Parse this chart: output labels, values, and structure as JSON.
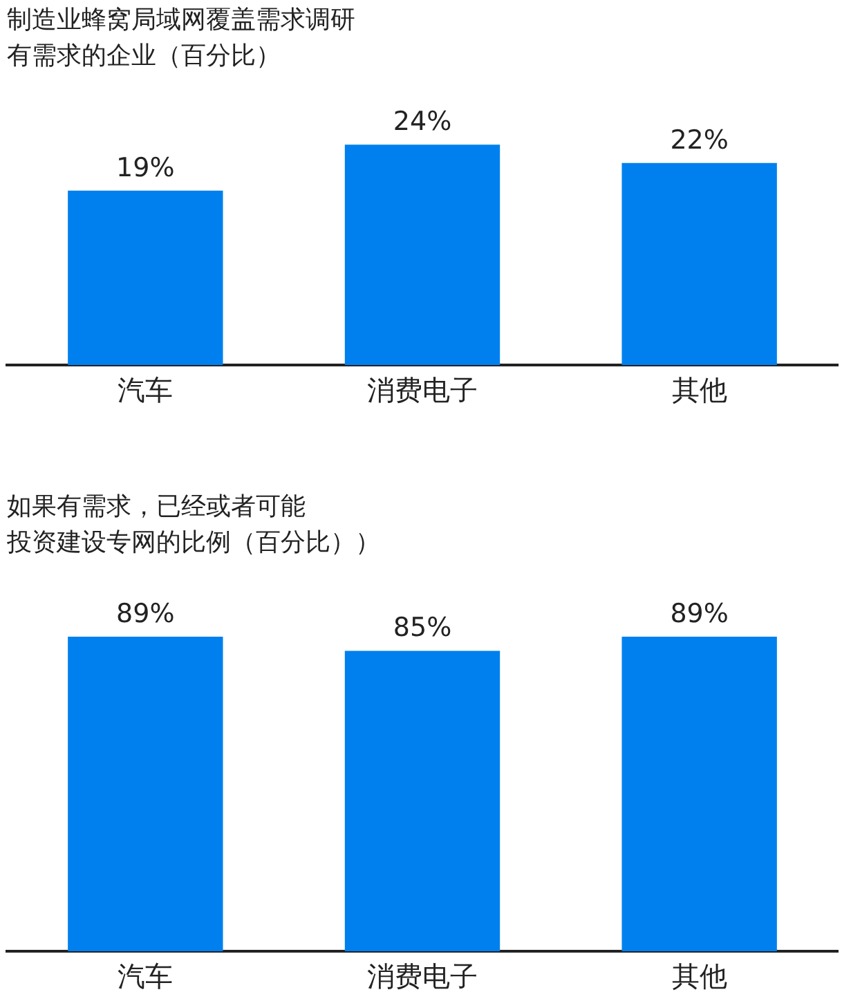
{
  "chart_data": [
    {
      "type": "bar",
      "title": "制造业蜂窝局域网覆盖需求调研",
      "subtitle": "有需求的企业（百分比）",
      "categories": [
        "汽车",
        "消费电子",
        "其他"
      ],
      "values": [
        19,
        24,
        22
      ],
      "value_labels": [
        "19%",
        "24%",
        "22%"
      ],
      "color": "#0080ee",
      "tick_labels": "x"
    },
    {
      "type": "bar",
      "title": "如果有需求，已经或者可能",
      "subtitle": "投资建设专网的比例（百分比））",
      "categories": [
        "汽车",
        "消费电子",
        "其他"
      ],
      "values": [
        89,
        85,
        89
      ],
      "value_labels": [
        "89%",
        "85%",
        "89%"
      ],
      "color": "#0080ee",
      "tick_labels": "x"
    }
  ]
}
